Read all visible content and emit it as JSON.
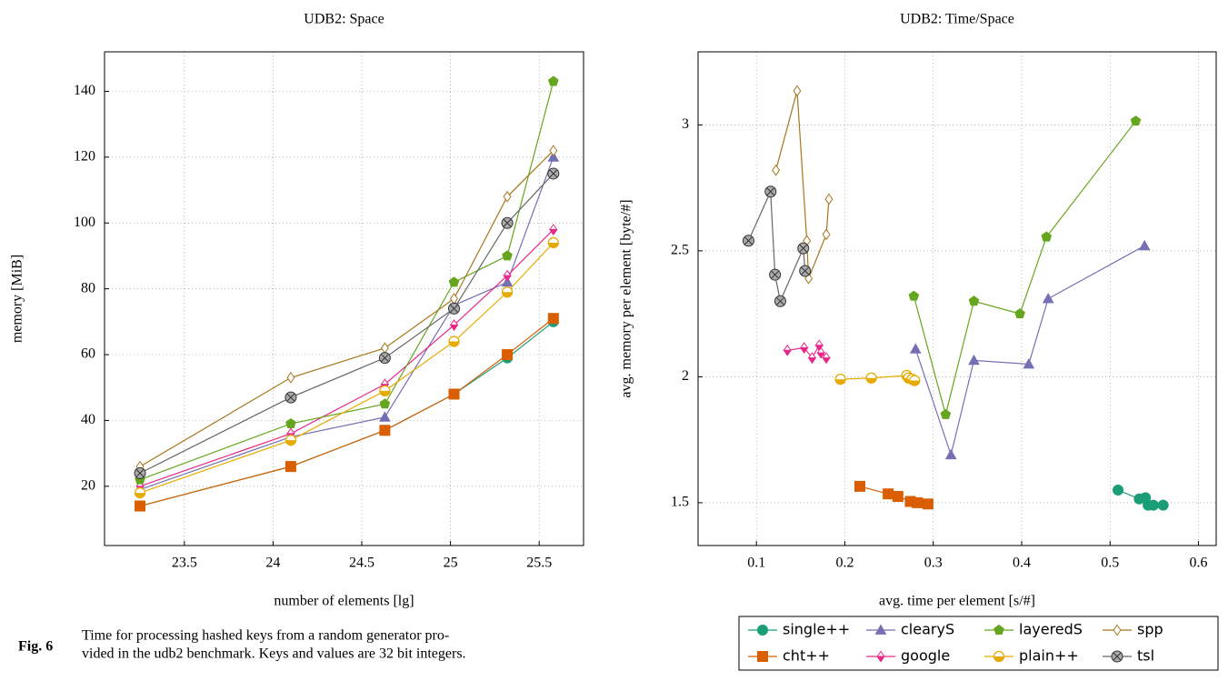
{
  "chart_data": [
    {
      "type": "line",
      "title": "UDB2: Space",
      "xlabel": "number of elements [lg]",
      "ylabel": "memory [MiB]",
      "x": [
        23.25,
        24.1,
        24.63,
        25.02,
        25.32,
        25.58
      ],
      "xlim": [
        23.05,
        25.75
      ],
      "xticks": [
        23.5,
        24,
        24.5,
        25,
        25.5
      ],
      "ylim": [
        2,
        152
      ],
      "yticks": [
        20,
        40,
        60,
        80,
        100,
        120,
        140
      ],
      "grid": true,
      "series": [
        {
          "color": "#1b9e77",
          "marker": "circle",
          "values": [
            14,
            26,
            37,
            48,
            59,
            70
          ]
        },
        {
          "color": "#d95f02",
          "marker": "square",
          "values": [
            14,
            26,
            37,
            48,
            60,
            71
          ]
        },
        {
          "color": "#7570b3",
          "marker": "triangle",
          "values": [
            19,
            35,
            41,
            75,
            82,
            120
          ]
        },
        {
          "color": "#e7298a",
          "marker": "diamond-half",
          "values": [
            20,
            36,
            51,
            69,
            84,
            98
          ]
        },
        {
          "color": "#66a61e",
          "marker": "pentagon",
          "values": [
            22,
            39,
            45,
            82,
            90,
            143
          ]
        },
        {
          "color": "#e6ab02",
          "marker": "circle-half",
          "values": [
            18,
            34,
            49,
            64,
            79,
            94
          ]
        },
        {
          "color": "#a6761d",
          "marker": "diamond",
          "values": [
            26,
            53,
            62,
            77,
            108,
            122
          ]
        },
        {
          "color": "#666666",
          "marker": "circle-x",
          "values": [
            24,
            47,
            59,
            74,
            100,
            115
          ]
        }
      ]
    },
    {
      "type": "line",
      "title": "UDB2: Time/Space",
      "xlabel": "avg. time per element [s/#]",
      "ylabel": "avg. memory per element [byte/#]",
      "xlim": [
        0.034,
        0.62
      ],
      "xticks": [
        0.1,
        0.2,
        0.3,
        0.4,
        0.5,
        0.6
      ],
      "ylim": [
        1.33,
        3.29
      ],
      "yticks": [
        1.5,
        2,
        2.5,
        3
      ],
      "grid": true,
      "legend": "bottom",
      "series": [
        {
          "name": "single++",
          "color": "#1b9e77",
          "marker": "circle",
          "x": [
            0.509,
            0.533,
            0.54,
            0.543,
            0.549,
            0.56
          ],
          "values": [
            1.55,
            1.515,
            1.52,
            1.49,
            1.49,
            1.49
          ]
        },
        {
          "name": "cht++",
          "color": "#d95f02",
          "marker": "square",
          "x": [
            0.217,
            0.249,
            0.26,
            0.274,
            0.282,
            0.294
          ],
          "values": [
            1.565,
            1.535,
            1.525,
            1.505,
            1.5,
            1.495
          ]
        },
        {
          "name": "clearyS",
          "color": "#7570b3",
          "marker": "triangle",
          "x": [
            0.28,
            0.32,
            0.346,
            0.408,
            0.43,
            0.539
          ],
          "values": [
            2.11,
            1.69,
            2.065,
            2.05,
            2.31,
            2.52
          ]
        },
        {
          "name": "google",
          "color": "#e7298a",
          "marker": "diamond-half",
          "x": [
            0.135,
            0.154,
            0.163,
            0.171,
            0.173,
            0.179
          ],
          "values": [
            2.105,
            2.115,
            2.075,
            2.125,
            2.095,
            2.075
          ]
        },
        {
          "name": "layeredS",
          "color": "#66a61e",
          "marker": "pentagon",
          "x": [
            0.278,
            0.314,
            0.346,
            0.398,
            0.428,
            0.529
          ],
          "values": [
            2.32,
            1.85,
            2.3,
            2.25,
            2.555,
            3.015
          ]
        },
        {
          "name": "plain++",
          "color": "#e6ab02",
          "marker": "circle-half",
          "x": [
            0.195,
            0.23,
            0.27,
            0.272,
            0.276,
            0.279
          ],
          "values": [
            1.99,
            1.995,
            2.005,
            1.995,
            1.99,
            1.985
          ]
        },
        {
          "name": "spp",
          "color": "#a6761d",
          "marker": "diamond",
          "x": [
            0.122,
            0.146,
            0.157,
            0.159,
            0.179,
            0.182
          ],
          "values": [
            2.82,
            3.135,
            2.54,
            2.39,
            2.565,
            2.705
          ]
        },
        {
          "name": "tsl",
          "color": "#666666",
          "marker": "circle-x",
          "x": [
            0.091,
            0.116,
            0.121,
            0.127,
            0.153,
            0.155
          ],
          "values": [
            2.54,
            2.735,
            2.405,
            2.3,
            2.51,
            2.42
          ]
        }
      ]
    }
  ],
  "caption": {
    "label": "Fig. 6",
    "lines": [
      "Time for processing hashed keys from a random generator pro-",
      "vided in the udb2 benchmark. Keys and values are 32 bit integers."
    ]
  }
}
